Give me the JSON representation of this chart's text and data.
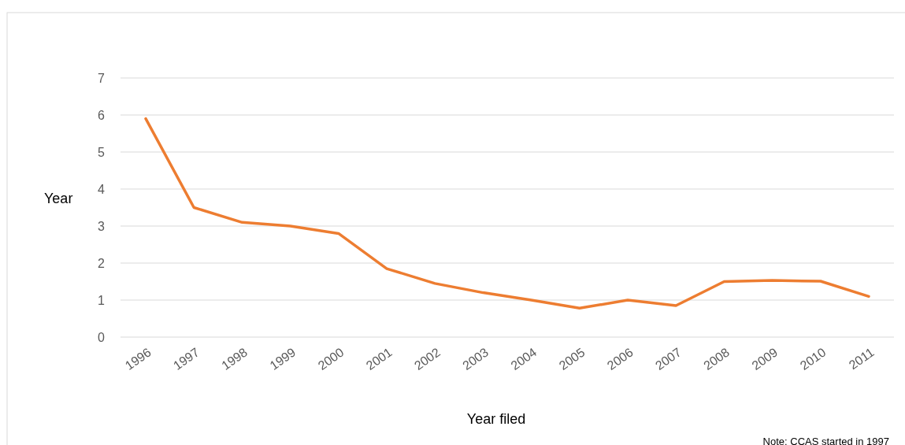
{
  "chart_data": {
    "type": "line",
    "categories": [
      "1996",
      "1997",
      "1998",
      "1999",
      "2000",
      "2001",
      "2002",
      "2003",
      "2004",
      "2005",
      "2006",
      "2007",
      "2008",
      "2009",
      "2010",
      "2011"
    ],
    "series": [
      {
        "color": "#ed7d31",
        "values": [
          5.9,
          3.5,
          3.1,
          3.0,
          2.8,
          1.85,
          1.45,
          1.2,
          1.0,
          0.78,
          1.0,
          0.85,
          1.5,
          1.53,
          1.51,
          1.1
        ]
      }
    ],
    "ylim": [
      0,
      7
    ],
    "yticks": [
      0,
      1,
      2,
      3,
      4,
      5,
      6,
      7
    ],
    "grid": "y",
    "xlabel": "Year filed",
    "ylabel": "Year",
    "annotations": [
      "Note: CCAS started in 1997"
    ],
    "legend": false,
    "marker": "none",
    "line_style": "solid"
  }
}
